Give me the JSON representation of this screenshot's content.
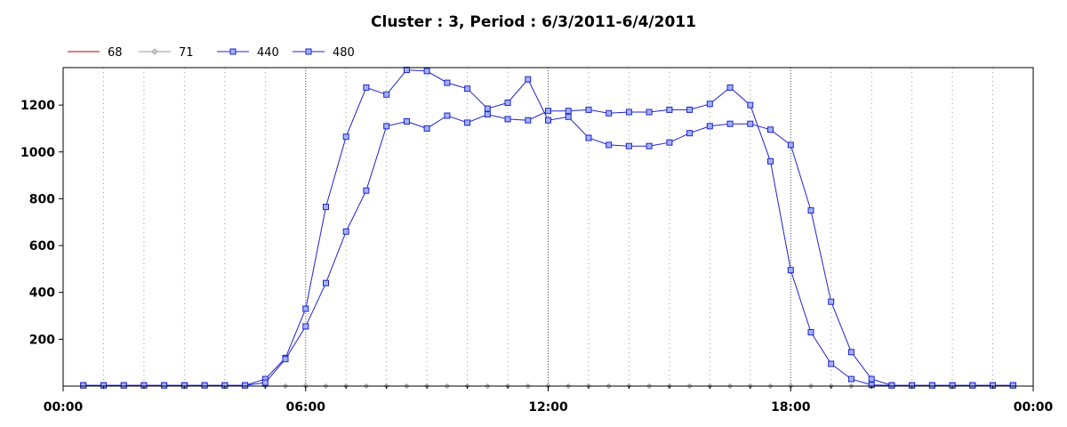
{
  "chart_data": {
    "type": "line",
    "title": "Cluster : 3, Period : 6/3/2011-6/4/2011",
    "xlabel": "",
    "ylabel": "",
    "x_ticks": [
      "00:00",
      "06:00",
      "12:00",
      "18:00",
      "00:00"
    ],
    "y_ticks": [
      200,
      400,
      600,
      800,
      1000,
      1200
    ],
    "xlim_hours": [
      0,
      24
    ],
    "ylim": [
      0,
      1360
    ],
    "grid": "vertical-dotted",
    "legend_position": "top-left",
    "series": [
      {
        "name": "68",
        "color": "#b00000",
        "marker": "none",
        "x_hours": [
          0.5,
          1,
          1.5,
          2,
          2.5,
          3,
          3.5,
          4,
          4.5,
          5,
          5.5,
          6,
          6.5,
          7,
          7.5,
          8,
          8.5,
          9,
          9.5,
          10,
          10.5,
          11,
          11.5,
          12,
          12.5,
          13,
          13.5,
          14,
          14.5,
          15,
          15.5,
          16,
          16.5,
          17,
          17.5,
          18,
          18.5,
          19,
          19.5,
          20,
          20.5,
          21,
          21.5,
          22,
          22.5,
          23,
          23.5
        ],
        "values": [
          0,
          0,
          0,
          0,
          0,
          0,
          0,
          0,
          0,
          0,
          0,
          0,
          0,
          0,
          0,
          0,
          0,
          0,
          0,
          0,
          0,
          0,
          0,
          0,
          0,
          0,
          0,
          0,
          0,
          0,
          0,
          0,
          0,
          0,
          0,
          0,
          0,
          0,
          0,
          0,
          0,
          0,
          0,
          0,
          0,
          0,
          0
        ]
      },
      {
        "name": "71",
        "color": "#999999",
        "marker": "diamond",
        "x_hours": [
          0.5,
          1,
          1.5,
          2,
          2.5,
          3,
          3.5,
          4,
          4.5,
          5,
          5.5,
          6,
          6.5,
          7,
          7.5,
          8,
          8.5,
          9,
          9.5,
          10,
          10.5,
          11,
          11.5,
          12,
          12.5,
          13,
          13.5,
          14,
          14.5,
          15,
          15.5,
          16,
          16.5,
          17,
          17.5,
          18,
          18.5,
          19,
          19.5,
          20,
          20.5,
          21,
          21.5,
          22,
          22.5,
          23,
          23.5
        ],
        "values": [
          0,
          0,
          0,
          0,
          0,
          0,
          0,
          0,
          0,
          0,
          0,
          0,
          0,
          0,
          0,
          0,
          0,
          0,
          0,
          0,
          0,
          0,
          0,
          0,
          0,
          0,
          0,
          0,
          0,
          0,
          0,
          0,
          0,
          0,
          0,
          0,
          0,
          0,
          0,
          0,
          0,
          0,
          0,
          0,
          0,
          0,
          0
        ]
      },
      {
        "name": "440",
        "color": "#2222cc",
        "marker": "square",
        "x_hours": [
          0.5,
          1,
          1.5,
          2,
          2.5,
          3,
          3.5,
          4,
          4.5,
          5,
          5.5,
          6,
          6.5,
          7,
          7.5,
          8,
          8.5,
          9,
          9.5,
          10,
          10.5,
          11,
          11.5,
          12,
          12.5,
          13,
          13.5,
          14,
          14.5,
          15,
          15.5,
          16,
          16.5,
          17,
          17.5,
          18,
          18.5,
          19,
          19.5,
          20,
          20.5,
          21,
          21.5,
          22,
          22.5,
          23,
          23.5
        ],
        "values": [
          3,
          3,
          3,
          3,
          3,
          3,
          3,
          3,
          3,
          30,
          120,
          330,
          765,
          1065,
          1275,
          1245,
          1350,
          1345,
          1295,
          1270,
          1185,
          1210,
          1310,
          1135,
          1150,
          1060,
          1030,
          1025,
          1025,
          1040,
          1080,
          1110,
          1120,
          1120,
          1095,
          1030,
          750,
          360,
          145,
          30,
          3,
          3,
          3,
          3,
          3,
          3,
          3
        ]
      },
      {
        "name": "480",
        "color": "#2222cc",
        "marker": "square",
        "x_hours": [
          0.5,
          1,
          1.5,
          2,
          2.5,
          3,
          3.5,
          4,
          4.5,
          5,
          5.5,
          6,
          6.5,
          7,
          7.5,
          8,
          8.5,
          9,
          9.5,
          10,
          10.5,
          11,
          11.5,
          12,
          12.5,
          13,
          13.5,
          14,
          14.5,
          15,
          15.5,
          16,
          16.5,
          17,
          17.5,
          18,
          18.5,
          19,
          19.5,
          20,
          20.5,
          21,
          21.5,
          22,
          22.5,
          23,
          23.5
        ],
        "values": [
          3,
          3,
          3,
          3,
          3,
          3,
          3,
          3,
          3,
          15,
          115,
          255,
          440,
          660,
          835,
          1110,
          1130,
          1100,
          1155,
          1125,
          1160,
          1140,
          1135,
          1175,
          1175,
          1180,
          1165,
          1170,
          1170,
          1180,
          1180,
          1205,
          1275,
          1200,
          960,
          495,
          230,
          95,
          30,
          5,
          3,
          3,
          3,
          3,
          3,
          3,
          3
        ]
      }
    ]
  }
}
